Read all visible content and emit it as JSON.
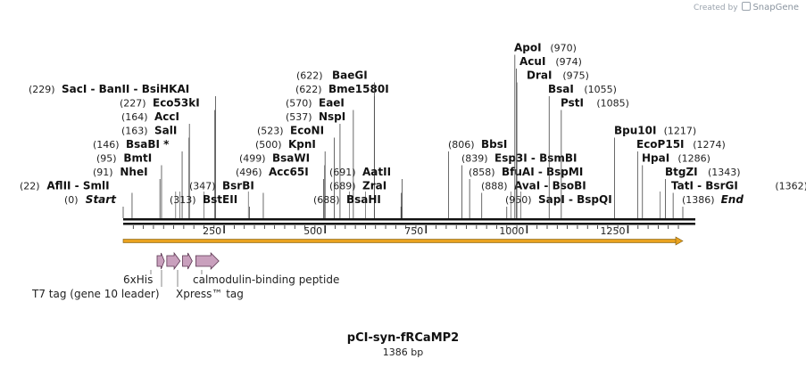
{
  "watermark": {
    "created_by": "Created by",
    "brand": "SnapGene"
  },
  "title": "pCI-syn-fRCaMP2",
  "length_label": "1386 bp",
  "length_bp": 1386,
  "scale_ticks": [
    "250",
    "500",
    "750",
    "1000",
    "1250"
  ],
  "scale_tick_values": [
    250,
    500,
    750,
    1000,
    1250
  ],
  "sites": [
    {
      "pos": 0,
      "pos_label": "(0)",
      "name": "Start",
      "italic": true,
      "tier": 1
    },
    {
      "pos": 22,
      "pos_label": "(22)",
      "name": "AflII  -  SmlI",
      "tier": 2
    },
    {
      "pos": 91,
      "pos_label": "(91)",
      "name": "NheI",
      "tier": 3
    },
    {
      "pos": 95,
      "pos_label": "(95)",
      "name": "BmtI",
      "tier": 4
    },
    {
      "pos": 146,
      "pos_label": "(146)",
      "name": "BsaBI *",
      "tier": 5
    },
    {
      "pos": 163,
      "pos_label": "(163)",
      "name": "SalI",
      "tier": 6
    },
    {
      "pos": 164,
      "pos_label": "(164)",
      "name": "AccI",
      "tier": 7
    },
    {
      "pos": 227,
      "pos_label": "(227)",
      "name": "Eco53kI",
      "tier": 8
    },
    {
      "pos": 229,
      "pos_label": "(229)",
      "name": "SacI  -  BanII  -  BsiHKAI",
      "tier": 9
    },
    {
      "pos": 313,
      "pos_label": "(313)",
      "name": "BstEII",
      "tier": 1
    },
    {
      "pos": 347,
      "pos_label": "(347)",
      "name": "BsrBI",
      "tier": 2
    },
    {
      "pos": 496,
      "pos_label": "(496)",
      "name": "Acc65I",
      "tier": 3
    },
    {
      "pos": 499,
      "pos_label": "(499)",
      "name": "BsaWI",
      "tier": 4
    },
    {
      "pos": 500,
      "pos_label": "(500)",
      "name": "KpnI",
      "tier": 5
    },
    {
      "pos": 523,
      "pos_label": "(523)",
      "name": "EcoNI",
      "tier": 6
    },
    {
      "pos": 537,
      "pos_label": "(537)",
      "name": "NspI",
      "tier": 7
    },
    {
      "pos": 570,
      "pos_label": "(570)",
      "name": "EaeI",
      "tier": 8
    },
    {
      "pos": 622,
      "pos_label": "(622)",
      "name": "Bme1580I",
      "tier": 9
    },
    {
      "pos": 622,
      "pos_label": "",
      "name": "BaeGI",
      "tier": 10
    },
    {
      "pos": 688,
      "pos_label": "(688)",
      "name": "BsaHI",
      "tier": 1
    },
    {
      "pos": 689,
      "pos_label": "(689)",
      "name": "ZraI",
      "tier": 2
    },
    {
      "pos": 691,
      "pos_label": "(691)",
      "name": "AatII",
      "tier": 3
    },
    {
      "pos": 806,
      "pos_label": "(806)",
      "name": "BbsI",
      "tier": 5
    },
    {
      "pos": 839,
      "pos_label": "(839)",
      "name": "Esp3I  -  BsmBI",
      "tier": 4
    },
    {
      "pos": 858,
      "pos_label": "(858)",
      "name": "BfuAI  -  BspMI",
      "tier": 3
    },
    {
      "pos": 888,
      "pos_label": "(888)",
      "name": "AvaI  -  BsoBI",
      "tier": 2
    },
    {
      "pos": 950,
      "pos_label": "(950)",
      "name": "SapI  -  BspQI",
      "tier": 1
    },
    {
      "pos": 970,
      "pos_label": "(970)",
      "name": "ApoI",
      "tier": 12
    },
    {
      "pos": 974,
      "pos_label": "(974)",
      "name": "AcuI",
      "tier": 11
    },
    {
      "pos": 975,
      "pos_label": "(975)",
      "name": "DraI",
      "tier": 10
    },
    {
      "pos": 1055,
      "pos_label": "(1055)",
      "name": "BsaI",
      "tier": 9
    },
    {
      "pos": 1085,
      "pos_label": "(1085)",
      "name": "PstI",
      "tier": 8
    },
    {
      "pos": 1217,
      "pos_label": "(1217)",
      "name": "Bpu10I",
      "tier": 6
    },
    {
      "pos": 1274,
      "pos_label": "(1274)",
      "name": "EcoP15I",
      "tier": 5
    },
    {
      "pos": 1286,
      "pos_label": "(1286)",
      "name": "HpaI",
      "tier": 4
    },
    {
      "pos": 1343,
      "pos_label": "(1343)",
      "name": "BtgZI",
      "tier": 3
    },
    {
      "pos": 1362,
      "pos_label": "(1362)",
      "name": "TatI  -  BsrGI",
      "tier": 2
    },
    {
      "pos": 1386,
      "pos_label": "(1386)",
      "name": "End",
      "italic": true,
      "tier": 1
    }
  ],
  "extra_cut_positions": [
    130,
    140,
    200,
    310,
    560,
    600,
    960,
    985,
    1330
  ],
  "orf": {
    "start": 0,
    "end": 1386,
    "color": "#e9a21f"
  },
  "features": [
    {
      "name": "6xHis",
      "start": 84,
      "end": 102,
      "color": "#c9a0bd"
    },
    {
      "name": "T7 tag (gene 10 leader)",
      "start": 108,
      "end": 141,
      "color": "#c9a0bd"
    },
    {
      "name": "Xpress™ tag",
      "start": 147,
      "end": 171,
      "color": "#c9a0bd"
    },
    {
      "name": "calmodulin-binding peptide",
      "start": 180,
      "end": 237,
      "color": "#c9a0bd"
    }
  ]
}
